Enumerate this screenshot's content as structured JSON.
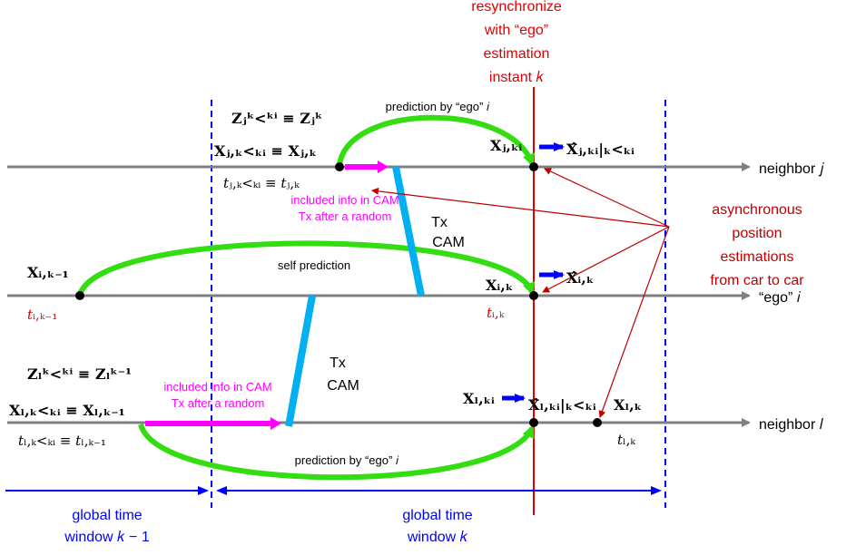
{
  "top": {
    "line1": "resynchronize",
    "line2": "with “ego”",
    "line3": "estimation",
    "line4": "instant 𝑘"
  },
  "timelines": {
    "neighbor_j": "neighbor 𝑗",
    "ego_i": "“ego” 𝑖",
    "neighbor_l": "neighbor 𝑙"
  },
  "labels": {
    "prediction_top": "prediction by “ego” 𝑖",
    "prediction_bottom": "prediction by “ego” 𝑖",
    "self_prediction": "self prediction",
    "tx1": "Tx",
    "cam1": "CAM",
    "tx2": "Tx",
    "cam2": "CAM",
    "info1_line1": "included info in CAM",
    "info1_line2": "Tx after a random",
    "info2_line1": "included info in CAM",
    "info2_line2": "Tx after a random",
    "async1": "asynchronous",
    "async2": "position",
    "async3": "estimations",
    "async4": "from car to car",
    "window1_line1": "global time",
    "window1_line2": "window 𝑘 − 1",
    "window2_line1": "global time",
    "window2_line2": "window 𝑘"
  },
  "math": {
    "zj_lhs": "𝐙ⱼᵏ<ᵏⁱ ≡ 𝐙ⱼᵏ",
    "xj_lhs": "𝐗ⱼ,ₖ<ₖᵢ ≡ 𝐗ⱼ,ₖ",
    "tj_lhs": "𝑡ⱼ,ₖ<ₖᵢ ≡ 𝑡ⱼ,ₖ",
    "xj_ki": "𝐗ⱼ,ₖᵢ",
    "xj_hat": "𝐗̂ⱼ,ₖᵢ|ₖ<ₖᵢ",
    "xi_km1": "𝐗ᵢ,ₖ₋₁",
    "ti_km1": "𝑡ᵢ,ₖ₋₁",
    "xi_k": "𝐗ᵢ,ₖ",
    "xi_hat": "𝐗̂ᵢ,ₖ",
    "ti_k": "𝑡ᵢ,ₖ",
    "zl_lhs": "𝐙ₗᵏ<ᵏⁱ ≡ 𝐙ₗᵏ⁻¹",
    "xl_lhs": "𝐗ₗ,ₖ<ₖᵢ ≡ 𝐗ₗ,ₖ₋₁",
    "tl_lhs": "𝑡ₗ,ₖ<ₖᵢ ≡ 𝑡ₗ,ₖ₋₁",
    "xl_ki": "𝐗ₗ,ₖᵢ",
    "xl_hat": "𝐗̂ₗ,ₖᵢ|ₖ<ₖᵢ",
    "xl_k": "𝐗ₗ,ₖ",
    "tl_k": "𝑡ₗ,ₖ"
  },
  "colors": {
    "timeline": "#808080",
    "red": "#e00000",
    "dark_red": "#c00000",
    "blue": "#0000ff",
    "green": "#33dd11",
    "magenta": "#ff00ff",
    "cyan": "#00b0f0"
  }
}
